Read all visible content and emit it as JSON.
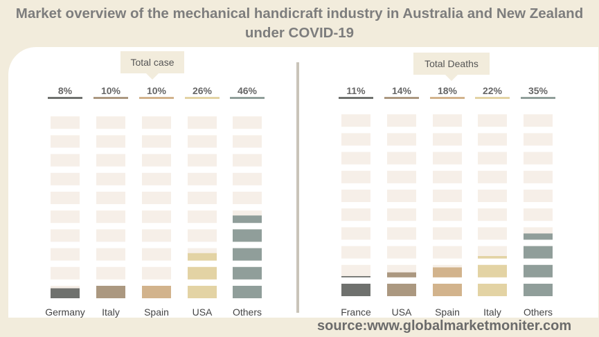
{
  "title": "Market overview of the mechanical handicraft industry in Australia and New Zealand under COVID-19",
  "source": "source:www.globalmarketmoniter.com",
  "colors": {
    "background": "#f2ecdc",
    "empty_segment": "#f6efe8",
    "series": [
      "#6f716e",
      "#ab9880",
      "#d2b38c",
      "#e3d3a4",
      "#909e9a"
    ]
  },
  "chart_data": [
    {
      "type": "bar",
      "title": "Total case",
      "categories": [
        "Germany",
        "Italy",
        "Spain",
        "USA",
        "Others"
      ],
      "values": [
        8,
        10,
        10,
        26,
        46
      ],
      "value_labels": [
        "8%",
        "10%",
        "10%",
        "26%",
        "46%"
      ],
      "ylim": [
        0,
        100
      ]
    },
    {
      "type": "bar",
      "title": "Total Deaths",
      "categories": [
        "France",
        "USA",
        "Spain",
        "Italy",
        "Others"
      ],
      "values": [
        11,
        14,
        18,
        22,
        35
      ],
      "value_labels": [
        "11%",
        "14%",
        "18%",
        "22%",
        "35%"
      ],
      "ylim": [
        0,
        100
      ]
    }
  ]
}
